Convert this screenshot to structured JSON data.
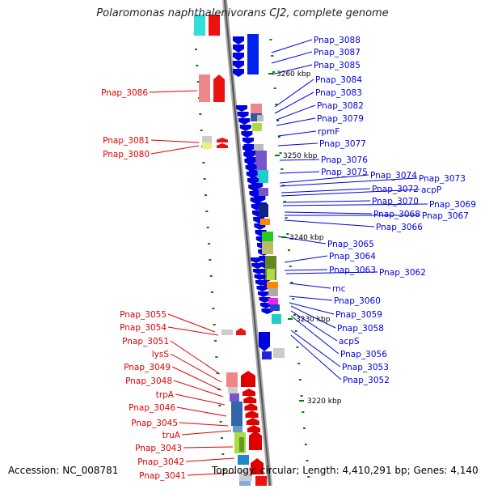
{
  "title": "Polaromonas naphthalenivorans CJ2, complete genome",
  "accession": "Accession: NC_008781",
  "topology": "Topology: circular; Length: 4,410,291 bp; Genes: 4,140",
  "scale_labels": [
    "3260 kbp",
    "3250 kbp",
    "3240 kbp",
    "3230 kbp",
    "3220 kbp"
  ],
  "right_labels": [
    "Pnap_3088",
    "Pnap_3087",
    "Pnap_3085",
    "Pnap_3084",
    "Pnap_3083",
    "Pnap_3082",
    "Pnap_3079",
    "rpmF",
    "Pnap_3077",
    "Pnap_3076",
    "Pnap_3075",
    "Pnap_3074",
    "Pnap_3073",
    "Pnap_3072",
    "acpP",
    "Pnap_3070",
    "Pnap_3069",
    "Pnap_3068",
    "Pnap_3067",
    "Pnap_3066",
    "Pnap_3065",
    "Pnap_3064",
    "Pnap_3063",
    "Pnap_3062",
    "rnc",
    "Pnap_3060",
    "Pnap_3059",
    "Pnap_3058",
    "acpS",
    "Pnap_3056",
    "Pnap_3053",
    "Pnap_3052"
  ],
  "left_labels": [
    "Pnap_3086",
    "Pnap_3081",
    "Pnap_3080",
    "Pnap_3055",
    "Pnap_3054",
    "Pnap_3051",
    "lysS",
    "Pnap_3049",
    "Pnap_3048",
    "trpA",
    "Pnap_3046",
    "Pnap_3045",
    "truA",
    "Pnap_3043",
    "Pnap_3042",
    "Pnap_3041"
  ],
  "colors": {
    "forward": "#e00000",
    "reverse": "#0000e0",
    "scale": "#008000",
    "backbone": "#888888"
  }
}
